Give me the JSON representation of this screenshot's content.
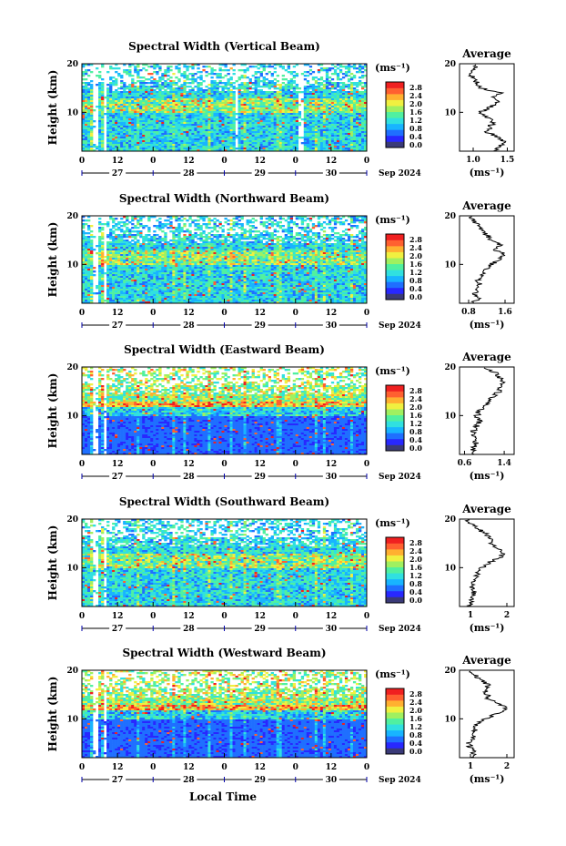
{
  "figure": {
    "xlabel": "Local Time",
    "colorbar_unit": "(ms⁻¹)",
    "colorbar_ticks": [
      "0.0",
      "0.4",
      "0.8",
      "1.2",
      "1.6",
      "2.0",
      "2.4",
      "2.8"
    ],
    "colorbar_colors": [
      "#3a3a78",
      "#2828ff",
      "#1f6fff",
      "#18b4ff",
      "#30e0e0",
      "#50f0a0",
      "#a0f060",
      "#f0f040",
      "#ffb030",
      "#ff6030",
      "#f02020"
    ],
    "month_label": "Sep 2024",
    "hour_ticks": [
      "0",
      "12",
      "0",
      "12",
      "0",
      "12",
      "0",
      "12",
      "0"
    ],
    "day_labels": [
      "27",
      "28",
      "29",
      "30"
    ],
    "y_ticks": [
      "20",
      "10"
    ],
    "ylabel": "Height (km)",
    "avg_title": "Average",
    "avg_unit": "(ms⁻¹)"
  },
  "chart_data": [
    {
      "type": "heatmap",
      "title": "Spectral Width (Vertical Beam)",
      "ylabel": "Height (km)",
      "xlabel": "Local Time",
      "x_range_hours": [
        0,
        96
      ],
      "ylim": [
        2,
        20
      ],
      "clim": [
        0.0,
        3.0
      ],
      "average": {
        "title": "Average",
        "xlabel": "(ms⁻¹)",
        "xlim": [
          0.8,
          1.6
        ],
        "x_ticks": [
          "1.0",
          "1.5"
        ],
        "y_ticks": [
          "20",
          "10"
        ],
        "profile": [
          [
            2,
            1.3
          ],
          [
            3,
            1.4
          ],
          [
            4,
            1.45
          ],
          [
            5,
            1.35
          ],
          [
            6,
            1.2
          ],
          [
            7,
            1.25
          ],
          [
            8,
            1.3
          ],
          [
            9,
            1.2
          ],
          [
            10,
            1.1
          ],
          [
            11,
            1.25
          ],
          [
            12,
            1.35
          ],
          [
            13,
            1.3
          ],
          [
            14,
            1.4
          ],
          [
            15,
            1.1
          ],
          [
            16,
            1.05
          ],
          [
            17,
            1.0
          ],
          [
            18,
            0.95
          ],
          [
            19,
            1.0
          ],
          [
            20,
            1.1
          ]
        ]
      }
    },
    {
      "type": "heatmap",
      "title": "Spectral Width (Northward Beam)",
      "ylabel": "Height (km)",
      "xlabel": "Local Time",
      "x_range_hours": [
        0,
        96
      ],
      "ylim": [
        2,
        20
      ],
      "clim": [
        0.0,
        3.0
      ],
      "average": {
        "title": "Average",
        "xlabel": "(ms⁻¹)",
        "xlim": [
          0.6,
          1.8
        ],
        "x_ticks": [
          "0.8",
          "1.6"
        ],
        "y_ticks": [
          "20",
          "10"
        ],
        "profile": [
          [
            2,
            0.9
          ],
          [
            3,
            1.0
          ],
          [
            4,
            0.95
          ],
          [
            5,
            1.0
          ],
          [
            6,
            1.05
          ],
          [
            7,
            1.0
          ],
          [
            8,
            1.1
          ],
          [
            9,
            1.15
          ],
          [
            10,
            1.3
          ],
          [
            11,
            1.5
          ],
          [
            12,
            1.6
          ],
          [
            13,
            1.4
          ],
          [
            14,
            1.5
          ],
          [
            15,
            1.3
          ],
          [
            16,
            1.2
          ],
          [
            17,
            1.1
          ],
          [
            18,
            1.0
          ],
          [
            19,
            0.9
          ],
          [
            20,
            0.85
          ]
        ]
      }
    },
    {
      "type": "heatmap",
      "title": "Spectral Width (Eastward Beam)",
      "ylabel": "Height (km)",
      "xlabel": "Local Time",
      "x_range_hours": [
        0,
        96
      ],
      "ylim": [
        2,
        20
      ],
      "clim": [
        0.0,
        3.0
      ],
      "average": {
        "title": "Average",
        "xlabel": "(ms⁻¹)",
        "xlim": [
          0.5,
          1.6
        ],
        "x_ticks": [
          "0.6",
          "1.4"
        ],
        "y_ticks": [
          "20",
          "10"
        ],
        "profile": [
          [
            2,
            0.8
          ],
          [
            3,
            0.75
          ],
          [
            4,
            0.85
          ],
          [
            5,
            0.8
          ],
          [
            6,
            0.75
          ],
          [
            7,
            0.8
          ],
          [
            8,
            0.85
          ],
          [
            9,
            0.9
          ],
          [
            10,
            0.85
          ],
          [
            11,
            0.9
          ],
          [
            12,
            1.0
          ],
          [
            13,
            1.1
          ],
          [
            14,
            1.2
          ],
          [
            15,
            1.3
          ],
          [
            16,
            1.35
          ],
          [
            17,
            1.4
          ],
          [
            18,
            1.3
          ],
          [
            19,
            1.2
          ],
          [
            20,
            1.0
          ]
        ]
      }
    },
    {
      "type": "heatmap",
      "title": "Spectral Width (Southward Beam)",
      "ylabel": "Height (km)",
      "xlabel": "Local Time",
      "x_range_hours": [
        0,
        96
      ],
      "ylim": [
        2,
        20
      ],
      "clim": [
        0.0,
        3.0
      ],
      "average": {
        "title": "Average",
        "xlabel": "(ms⁻¹)",
        "xlim": [
          0.7,
          2.2
        ],
        "x_ticks": [
          "1",
          "2"
        ],
        "y_ticks": [
          "20",
          "10"
        ],
        "profile": [
          [
            2,
            1.0
          ],
          [
            3,
            1.05
          ],
          [
            4,
            1.0
          ],
          [
            5,
            1.1
          ],
          [
            6,
            1.05
          ],
          [
            7,
            1.1
          ],
          [
            8,
            1.15
          ],
          [
            9,
            1.2
          ],
          [
            10,
            1.3
          ],
          [
            11,
            1.5
          ],
          [
            12,
            1.8
          ],
          [
            13,
            1.9
          ],
          [
            14,
            1.7
          ],
          [
            15,
            1.6
          ],
          [
            16,
            1.5
          ],
          [
            17,
            1.4
          ],
          [
            18,
            1.2
          ],
          [
            19,
            1.0
          ],
          [
            20,
            0.9
          ]
        ]
      }
    },
    {
      "type": "heatmap",
      "title": "Spectral Width (Westward Beam)",
      "ylabel": "Height (km)",
      "xlabel": "Local Time",
      "x_range_hours": [
        0,
        96
      ],
      "ylim": [
        2,
        20
      ],
      "clim": [
        0.0,
        3.0
      ],
      "average": {
        "title": "Average",
        "xlabel": "(ms⁻¹)",
        "xlim": [
          0.7,
          2.2
        ],
        "x_ticks": [
          "1",
          "2"
        ],
        "y_ticks": [
          "20",
          "10"
        ],
        "profile": [
          [
            2,
            1.0
          ],
          [
            3,
            1.1
          ],
          [
            4,
            1.0
          ],
          [
            5,
            0.95
          ],
          [
            6,
            1.05
          ],
          [
            7,
            1.1
          ],
          [
            8,
            1.15
          ],
          [
            9,
            1.2
          ],
          [
            10,
            1.4
          ],
          [
            11,
            1.7
          ],
          [
            12,
            2.0
          ],
          [
            13,
            1.8
          ],
          [
            14,
            1.5
          ],
          [
            15,
            1.45
          ],
          [
            16,
            1.4
          ],
          [
            17,
            1.5
          ],
          [
            18,
            1.3
          ],
          [
            19,
            1.1
          ],
          [
            20,
            1.0
          ]
        ]
      }
    }
  ]
}
